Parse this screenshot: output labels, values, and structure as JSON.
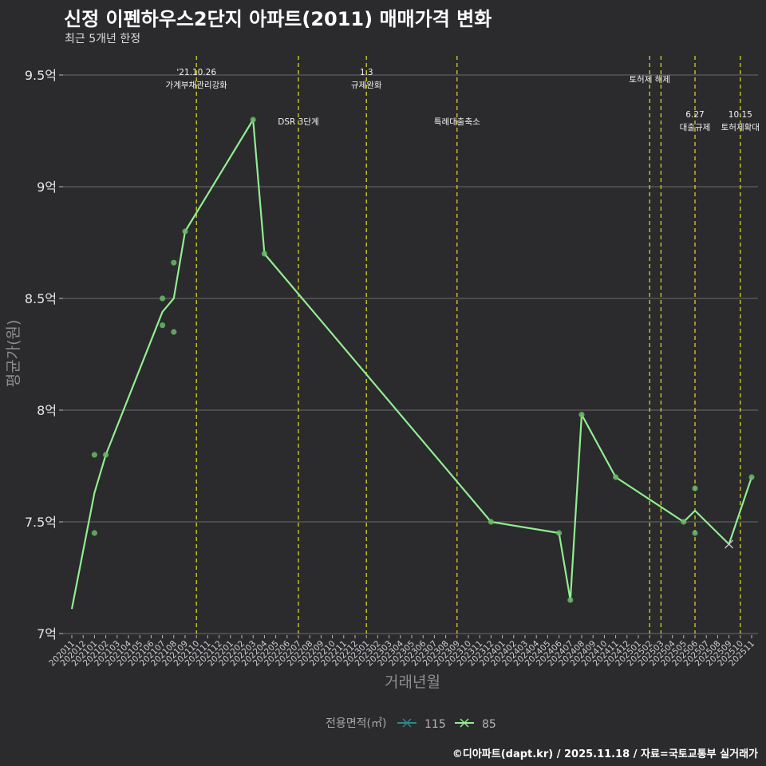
{
  "header": {
    "title": "신정 이펜하우스2단지 아파트(2011) 매매가격 변화",
    "subtitle": "최근 5개년 한정"
  },
  "footer": {
    "caption": "©디아파트(dapt.kr) / 2025.11.18 / 자료=국토교통부 실거래가"
  },
  "colors": {
    "background": "#2b2a2c",
    "grid": "#6b6b6b",
    "line85": "#90ee90",
    "point85": "#6ab86a",
    "line115": "#2a8a8a",
    "vline": "#d4d423"
  },
  "chart_data": {
    "type": "line",
    "title": "신정 이펜하우스2단지 아파트(2011) 매매가격 변화",
    "subtitle": "최근 5개년 한정",
    "xlabel": "거래년월",
    "ylabel": "평균가(원)",
    "ylim": [
      7.0,
      9.6
    ],
    "yticks": [
      {
        "value": 7.0,
        "label": "7억"
      },
      {
        "value": 7.5,
        "label": "7.5억"
      },
      {
        "value": 8.0,
        "label": "8억"
      },
      {
        "value": 8.5,
        "label": "8.5억"
      },
      {
        "value": 9.0,
        "label": "9억"
      },
      {
        "value": 9.5,
        "label": "9.5억"
      }
    ],
    "categories": [
      "202011",
      "202012",
      "202101",
      "202102",
      "202103",
      "202104",
      "202105",
      "202106",
      "202107",
      "202108",
      "202109",
      "202110",
      "202111",
      "202112",
      "202201",
      "202202",
      "202203",
      "202204",
      "202205",
      "202206",
      "202207",
      "202208",
      "202209",
      "202210",
      "202211",
      "202212",
      "202301",
      "202302",
      "202303",
      "202304",
      "202305",
      "202306",
      "202307",
      "202308",
      "202309",
      "202310",
      "202311",
      "202312",
      "202401",
      "202402",
      "202403",
      "202404",
      "202405",
      "202406",
      "202407",
      "202408",
      "202409",
      "202410",
      "202411",
      "202412",
      "202501",
      "202502",
      "202503",
      "202504",
      "202505",
      "202506",
      "202507",
      "202508",
      "202509",
      "202510",
      "202511"
    ],
    "series": [
      {
        "name": "85",
        "line": [
          {
            "x": "202011",
            "y": 7.11
          },
          {
            "x": "202101",
            "y": 7.63
          },
          {
            "x": "202102",
            "y": 7.8
          },
          {
            "x": "202107",
            "y": 8.44
          },
          {
            "x": "202108",
            "y": 8.5
          },
          {
            "x": "202109",
            "y": 8.8
          },
          {
            "x": "202203",
            "y": 9.3
          },
          {
            "x": "202204",
            "y": 8.7
          },
          {
            "x": "202312",
            "y": 7.5
          },
          {
            "x": "202406",
            "y": 7.45
          },
          {
            "x": "202407",
            "y": 7.15
          },
          {
            "x": "202408",
            "y": 7.98
          },
          {
            "x": "202411",
            "y": 7.7
          },
          {
            "x": "202505",
            "y": 7.5
          },
          {
            "x": "202506",
            "y": 7.55
          },
          {
            "x": "202509",
            "y": 7.4
          },
          {
            "x": "202511",
            "y": 7.7
          }
        ],
        "points": [
          {
            "x": "202101",
            "y": 7.8
          },
          {
            "x": "202101",
            "y": 7.45
          },
          {
            "x": "202102",
            "y": 7.8
          },
          {
            "x": "202107",
            "y": 8.5
          },
          {
            "x": "202107",
            "y": 8.38
          },
          {
            "x": "202108",
            "y": 8.66
          },
          {
            "x": "202108",
            "y": 8.35
          },
          {
            "x": "202109",
            "y": 8.8
          },
          {
            "x": "202203",
            "y": 9.3
          },
          {
            "x": "202204",
            "y": 8.7
          },
          {
            "x": "202312",
            "y": 7.5
          },
          {
            "x": "202406",
            "y": 7.45
          },
          {
            "x": "202407",
            "y": 7.15
          },
          {
            "x": "202408",
            "y": 7.98
          },
          {
            "x": "202411",
            "y": 7.7
          },
          {
            "x": "202505",
            "y": 7.5
          },
          {
            "x": "202506",
            "y": 7.65
          },
          {
            "x": "202506",
            "y": 7.45
          },
          {
            "x": "202511",
            "y": 7.7
          }
        ]
      },
      {
        "name": "115",
        "line": [],
        "points": [
          {
            "x": "202509",
            "y": 7.4
          }
        ]
      }
    ],
    "events": [
      {
        "x": "202110",
        "lines": [
          "'21.10.26",
          "가계부채관리강화"
        ],
        "row": "top"
      },
      {
        "x": "202207",
        "lines": [
          "DSR 3단계"
        ],
        "row": "mid"
      },
      {
        "x": "202301",
        "lines": [
          "1.3",
          "규제완화"
        ],
        "row": "top"
      },
      {
        "x": "202309",
        "lines": [
          "특례대출축소"
        ],
        "row": "mid"
      },
      {
        "x": "202502",
        "lines": [
          "토허제 해제"
        ],
        "row": "top2"
      },
      {
        "x": "202503",
        "lines": [],
        "row": "top2"
      },
      {
        "x": "202506",
        "lines": [
          "6.27",
          "대출규제"
        ],
        "row": "low"
      },
      {
        "x": "202510",
        "lines": [
          "10.15",
          "토허제확대"
        ],
        "row": "low"
      }
    ],
    "legend": {
      "title": "전용면적(㎡)",
      "items": [
        "115",
        "85"
      ],
      "position": "bottom"
    }
  }
}
